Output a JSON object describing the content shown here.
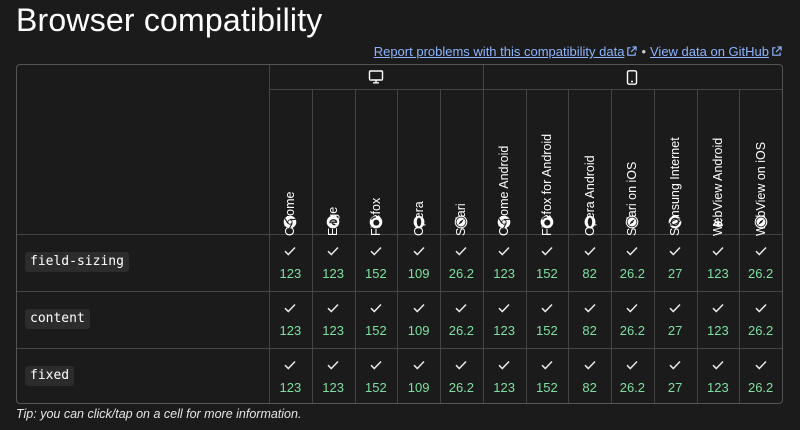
{
  "title": "Browser compatibility",
  "links": {
    "report": "Report problems with this compatibility data",
    "separator": "•",
    "github": "View data on GitHub"
  },
  "platforms": {
    "desktop": "desktop-icon",
    "mobile": "mobile-icon"
  },
  "browsers": [
    {
      "name": "Chrome",
      "icon": "chrome-icon"
    },
    {
      "name": "Edge",
      "icon": "edge-icon"
    },
    {
      "name": "Firefox",
      "icon": "firefox-icon"
    },
    {
      "name": "Opera",
      "icon": "opera-icon"
    },
    {
      "name": "Safari",
      "icon": "safari-icon"
    },
    {
      "name": "Chrome Android",
      "icon": "chrome-icon"
    },
    {
      "name": "Firefox for Android",
      "icon": "firefox-icon"
    },
    {
      "name": "Opera Android",
      "icon": "opera-icon"
    },
    {
      "name": "Safari on iOS",
      "icon": "safari-icon"
    },
    {
      "name": "Samsung Internet",
      "icon": "samsung-internet-icon"
    },
    {
      "name": "WebView Android",
      "icon": "android-icon"
    },
    {
      "name": "WebView on iOS",
      "icon": "safari-icon"
    }
  ],
  "features": [
    {
      "name": "field-sizing",
      "versions": [
        "123",
        "123",
        "152",
        "109",
        "26.2",
        "123",
        "152",
        "82",
        "26.2",
        "27",
        "123",
        "26.2"
      ]
    },
    {
      "name": "content",
      "versions": [
        "123",
        "123",
        "152",
        "109",
        "26.2",
        "123",
        "152",
        "82",
        "26.2",
        "27",
        "123",
        "26.2"
      ]
    },
    {
      "name": "fixed",
      "versions": [
        "123",
        "123",
        "152",
        "109",
        "26.2",
        "123",
        "152",
        "82",
        "26.2",
        "27",
        "123",
        "26.2"
      ]
    }
  ],
  "colors": {
    "supported": "#7ee0a0",
    "link": "#8cb4ff",
    "background": "#1b1b1b"
  },
  "tip": "Tip: you can click/tap on a cell for more information."
}
